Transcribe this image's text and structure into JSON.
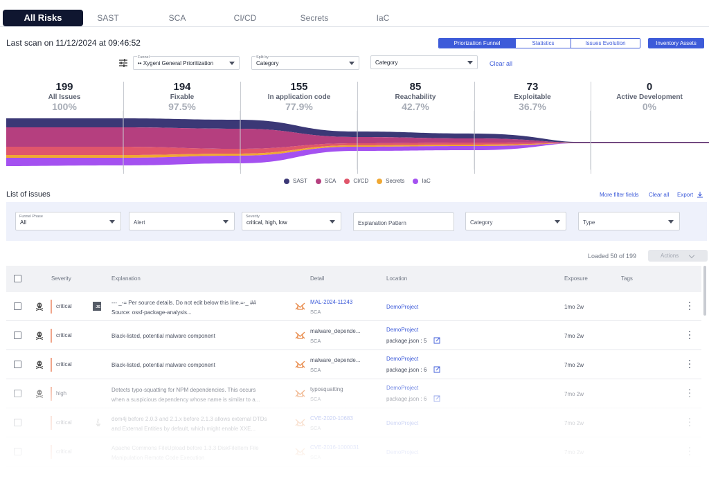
{
  "tabs": [
    {
      "label": "All Risks",
      "active": true
    },
    {
      "label": "SAST"
    },
    {
      "label": "SCA"
    },
    {
      "label": "CI/CD"
    },
    {
      "label": "Secrets"
    },
    {
      "label": "IaC"
    }
  ],
  "last_scan": "Last scan on 11/12/2024 at 09:46:52",
  "view_toggle": [
    "Priorization Funnel",
    "Statistics",
    "Issues Evolution"
  ],
  "inventory_button": "Inventory Assets",
  "filters": {
    "funnel_label": "Funnel",
    "funnel_value": "•• Xygeni General Prioritization",
    "split_label": "Split by",
    "split_value": "Category",
    "category_placeholder": "Category",
    "clear_all": "Clear all"
  },
  "funnel": [
    {
      "count": "199",
      "name": "All Issues",
      "pct": "100%"
    },
    {
      "count": "194",
      "name": "Fixable",
      "pct": "97.5%"
    },
    {
      "count": "155",
      "name": "In application code",
      "pct": "77.9%"
    },
    {
      "count": "85",
      "name": "Reachability",
      "pct": "42.7%"
    },
    {
      "count": "73",
      "name": "Exploitable",
      "pct": "36.7%"
    },
    {
      "count": "0",
      "name": "Active Development",
      "pct": "0%"
    }
  ],
  "legend": [
    {
      "name": "SAST",
      "color": "#3b3876"
    },
    {
      "name": "SCA",
      "color": "#b53f7f"
    },
    {
      "name": "CI/CD",
      "color": "#e0566b"
    },
    {
      "name": "Secrets",
      "color": "#f0a833"
    },
    {
      "name": "IaC",
      "color": "#a451f0"
    }
  ],
  "list": {
    "title": "List of issues",
    "more_filters": "More filter fields",
    "clear_all": "Clear all",
    "export": "Export",
    "panel": {
      "phase_label": "Funnel Phase",
      "phase_value": "All",
      "alert_placeholder": "Alert",
      "severity_label": "Severity",
      "severity_value": "critical, high, low",
      "pattern_placeholder": "Explanation Pattern",
      "category_placeholder": "Category",
      "type_placeholder": "Type"
    },
    "loaded": "Loaded 50 of 199",
    "actions": "Actions"
  },
  "table": {
    "headers": {
      "severity": "Severity",
      "explanation": "Explanation",
      "detail": "Detail",
      "location": "Location",
      "exposure": "Exposure",
      "tags": "Tags"
    },
    "rows": [
      {
        "severity": "critical",
        "expl1": "--- _-= Per source details. Do not edit below this line.=-_ ##",
        "expl2": "Source: ossf-package-analysis...",
        "detail1": "MAL-2024-11243",
        "detail2": "SCA",
        "loc1": "DemoProject",
        "loc2": "",
        "exposure": "1mo 2w"
      },
      {
        "severity": "critical",
        "expl1": "Black-listed, potential malware component",
        "expl2": "",
        "detail1": "malware_depende...",
        "detail2": "SCA",
        "loc1": "DemoProject",
        "loc2": "package.json : 5",
        "exposure": "7mo 2w"
      },
      {
        "severity": "critical",
        "expl1": "Black-listed, potential malware component",
        "expl2": "",
        "detail1": "malware_depende...",
        "detail2": "SCA",
        "loc1": "DemoProject",
        "loc2": "package.json : 6",
        "exposure": "7mo 2w"
      },
      {
        "severity": "high",
        "expl1": "Detects typo-squatting for NPM dependencies. This occurs",
        "expl2": "when a suspicious dependency whose name is similar to a...",
        "detail1": "typosquatting",
        "detail2": "SCA",
        "loc1": "DemoProject",
        "loc2": "package.json : 6",
        "exposure": "7mo 2w"
      },
      {
        "severity": "critical",
        "expl1": "dom4j before 2.0.3 and 2.1.x before 2.1.3 allows external DTDs",
        "expl2": "and External Entities by default, which might enable XXE...",
        "detail1": "CVE-2020-10683",
        "detail2": "SCA",
        "loc1": "DemoProject",
        "loc2": "",
        "exposure": "7mo 2w"
      },
      {
        "severity": "critical",
        "expl1": "Apache Commons FileUpload before 1.3.3 DiskFileItem File",
        "expl2": "Manipulation Remote Code Execution",
        "detail1": "CVE-2016-1000031",
        "detail2": "SCA",
        "loc1": "DemoProject",
        "loc2": "",
        "exposure": "7mo 2w"
      }
    ]
  }
}
